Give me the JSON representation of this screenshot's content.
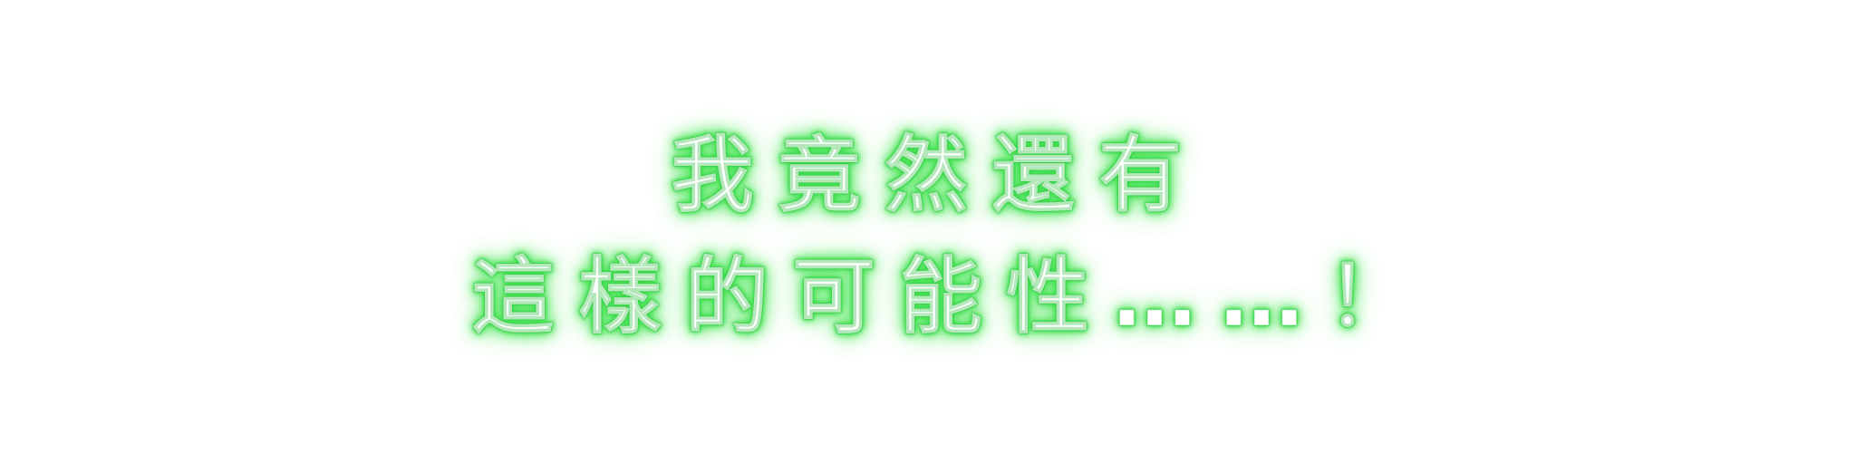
{
  "dialogue": {
    "line1": "我竟然還有",
    "line2": "這樣的可能性……！"
  },
  "colors": {
    "background": "#ffffff",
    "text": "#ffffff",
    "glow": "#35d945"
  }
}
